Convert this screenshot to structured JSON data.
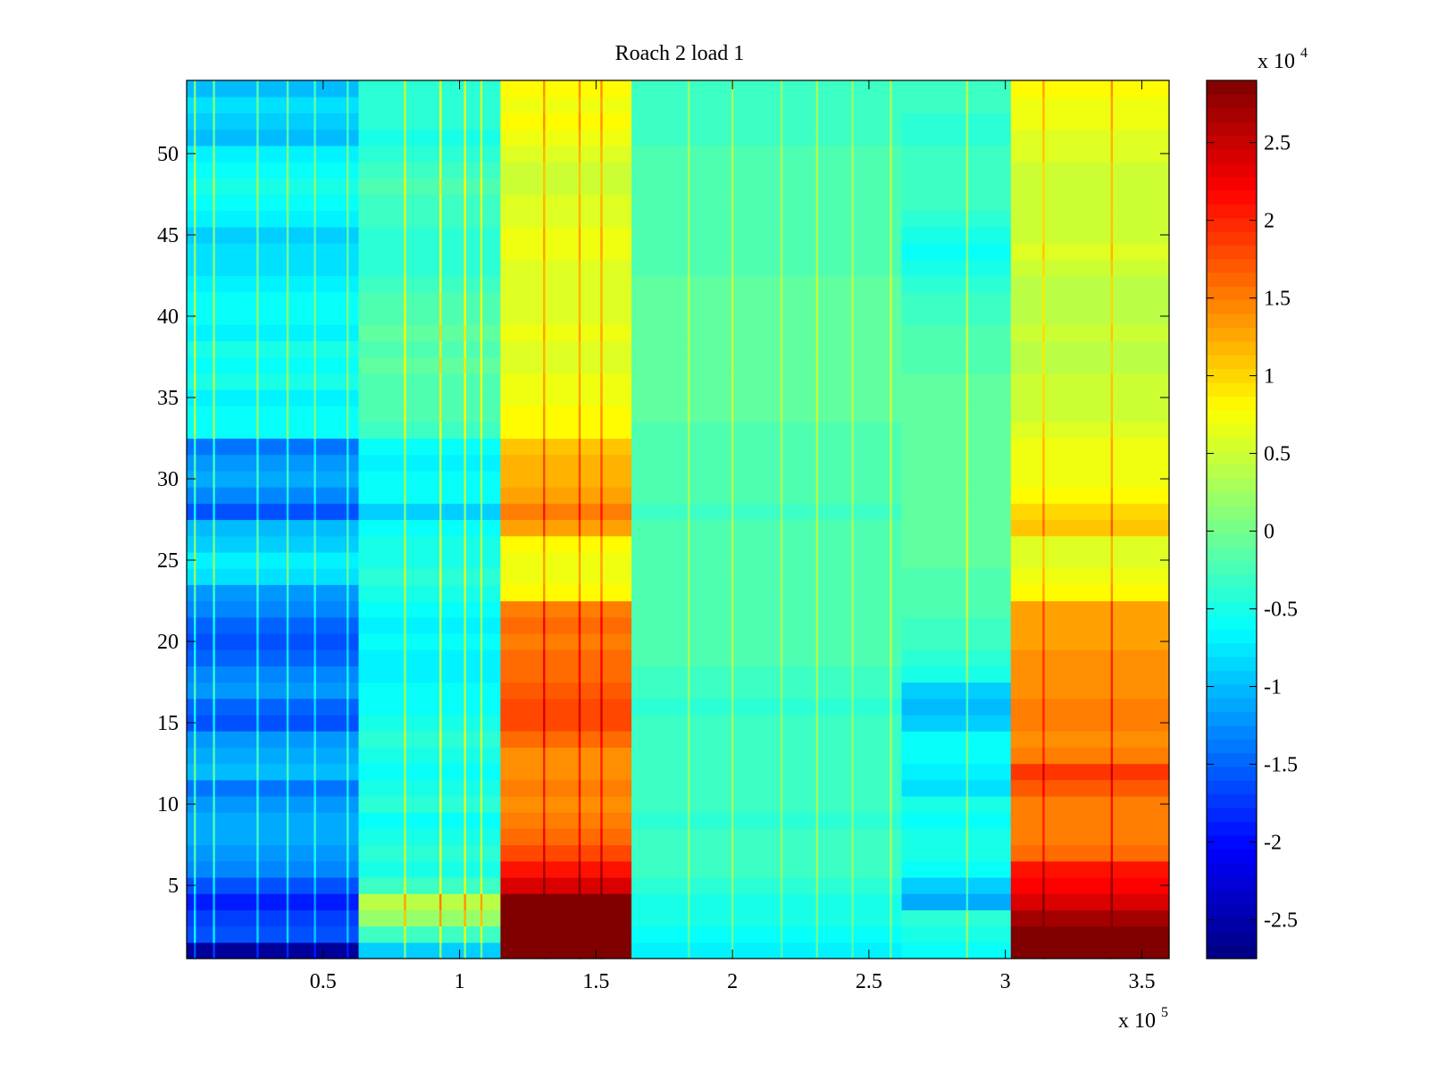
{
  "chart_data": {
    "type": "heatmap",
    "title": "Roach 2 load 1",
    "xlabel": "",
    "ylabel": "",
    "x_multiplier_label": {
      "base": "x 10",
      "exponent": "5"
    },
    "colorbar_multiplier_label": {
      "base": "x 10",
      "exponent": "4"
    },
    "xlim": [
      0,
      3.6
    ],
    "ylim": [
      0.5,
      54.5
    ],
    "clim": [
      -2.75,
      2.9
    ],
    "x_ticks": [
      0.5,
      1,
      1.5,
      2,
      2.5,
      3,
      3.5
    ],
    "x_tick_labels": [
      "0.5",
      "1",
      "1.5",
      "2",
      "2.5",
      "3",
      "3.5"
    ],
    "y_ticks": [
      5,
      10,
      15,
      20,
      25,
      30,
      35,
      40,
      45,
      50
    ],
    "y_tick_labels": [
      "5",
      "10",
      "15",
      "20",
      "25",
      "30",
      "35",
      "40",
      "45",
      "50"
    ],
    "colorbar_ticks": [
      -2.5,
      -2,
      -1.5,
      -1,
      -0.5,
      0,
      0.5,
      1,
      1.5,
      2,
      2.5
    ],
    "colorbar_tick_labels": [
      "-2.5",
      "-2",
      "-1.5",
      "-1",
      "-0.5",
      "0",
      "0.5",
      "1",
      "1.5",
      "2",
      "2.5"
    ],
    "colormap": "jet",
    "grid": false,
    "row_bins": 54,
    "segments": [
      {
        "x_start": 0.0,
        "x_end": 0.63,
        "row_values": [
          -2.6,
          -1.6,
          -1.7,
          -1.9,
          -1.6,
          -1.3,
          -1.2,
          -1.1,
          -1.1,
          -1.2,
          -1.4,
          -1.0,
          -1.1,
          -1.2,
          -1.6,
          -1.5,
          -1.2,
          -1.3,
          -1.5,
          -1.6,
          -1.5,
          -1.3,
          -1.2,
          -0.8,
          -0.7,
          -0.9,
          -1.0,
          -1.6,
          -1.3,
          -1.1,
          -1.2,
          -1.4,
          -0.6,
          -0.6,
          -0.7,
          -0.5,
          -0.6,
          -0.5,
          -0.7,
          -0.6,
          -0.6,
          -0.7,
          -0.8,
          -0.8,
          -0.9,
          -0.7,
          -0.6,
          -0.5,
          -0.6,
          -0.7,
          -1.0,
          -0.9,
          -0.8,
          -1.0
        ]
      },
      {
        "x_start": 0.63,
        "x_end": 1.15,
        "row_values": [
          -0.9,
          -0.3,
          0.2,
          0.4,
          -0.3,
          -0.5,
          -0.4,
          -0.5,
          -0.6,
          -0.4,
          -0.5,
          -0.6,
          -0.5,
          -0.4,
          -0.5,
          -0.6,
          -0.6,
          -0.7,
          -0.7,
          -0.6,
          -0.7,
          -0.6,
          -0.5,
          -0.4,
          -0.5,
          -0.5,
          -0.6,
          -0.9,
          -0.6,
          -0.6,
          -0.7,
          -0.6,
          -0.3,
          -0.2,
          -0.2,
          -0.2,
          -0.1,
          -0.2,
          -0.1,
          -0.2,
          -0.2,
          -0.3,
          -0.4,
          -0.4,
          -0.4,
          -0.3,
          -0.3,
          -0.2,
          -0.3,
          -0.4,
          -0.5,
          -0.4,
          -0.4,
          -0.4
        ]
      },
      {
        "x_start": 1.15,
        "x_end": 1.63,
        "row_values": [
          2.9,
          2.9,
          2.9,
          2.9,
          2.4,
          2.1,
          1.8,
          1.6,
          1.5,
          1.4,
          1.5,
          1.4,
          1.4,
          1.6,
          1.8,
          1.8,
          1.7,
          1.6,
          1.6,
          1.5,
          1.6,
          1.5,
          0.8,
          0.7,
          0.7,
          0.8,
          1.3,
          1.5,
          1.3,
          1.2,
          1.2,
          1.1,
          0.8,
          0.8,
          0.7,
          0.7,
          0.6,
          0.6,
          0.7,
          0.6,
          0.6,
          0.6,
          0.6,
          0.7,
          0.7,
          0.6,
          0.6,
          0.5,
          0.5,
          0.6,
          0.7,
          0.8,
          0.7,
          0.8
        ]
      },
      {
        "x_start": 1.63,
        "x_end": 2.62,
        "row_values": [
          -0.7,
          -0.6,
          -0.5,
          -0.5,
          -0.4,
          -0.3,
          -0.3,
          -0.3,
          -0.4,
          -0.3,
          -0.3,
          -0.3,
          -0.3,
          -0.3,
          -0.3,
          -0.4,
          -0.3,
          -0.3,
          -0.2,
          -0.2,
          -0.2,
          -0.2,
          -0.2,
          -0.2,
          -0.2,
          -0.2,
          -0.2,
          -0.3,
          -0.2,
          -0.2,
          -0.2,
          -0.2,
          -0.2,
          -0.1,
          -0.1,
          -0.1,
          -0.1,
          -0.1,
          -0.1,
          -0.1,
          -0.1,
          -0.1,
          -0.2,
          -0.2,
          -0.2,
          -0.2,
          -0.2,
          -0.2,
          -0.2,
          -0.2,
          -0.3,
          -0.3,
          -0.3,
          -0.3
        ]
      },
      {
        "x_start": 2.62,
        "x_end": 3.02,
        "row_values": [
          -0.6,
          -0.5,
          -0.4,
          -1.1,
          -0.9,
          -0.6,
          -0.5,
          -0.5,
          -0.6,
          -0.5,
          -0.8,
          -0.7,
          -0.6,
          -0.6,
          -0.9,
          -1.0,
          -0.9,
          -0.5,
          -0.4,
          -0.3,
          -0.3,
          -0.2,
          -0.2,
          -0.2,
          -0.1,
          -0.1,
          -0.1,
          -0.1,
          -0.1,
          -0.1,
          -0.1,
          -0.1,
          -0.1,
          -0.1,
          -0.1,
          -0.1,
          -0.2,
          -0.2,
          -0.2,
          -0.3,
          -0.3,
          -0.4,
          -0.5,
          -0.6,
          -0.5,
          -0.4,
          -0.3,
          -0.3,
          -0.3,
          -0.3,
          -0.4,
          -0.4,
          -0.3,
          -0.3
        ]
      },
      {
        "x_start": 3.02,
        "x_end": 3.6,
        "row_values": [
          2.9,
          2.9,
          2.7,
          2.4,
          2.2,
          2.1,
          1.6,
          1.5,
          1.5,
          1.5,
          1.7,
          1.9,
          1.5,
          1.4,
          1.5,
          1.5,
          1.4,
          1.4,
          1.4,
          1.3,
          1.3,
          1.3,
          0.8,
          0.7,
          0.6,
          0.6,
          1.1,
          1.0,
          0.8,
          0.7,
          0.7,
          0.7,
          0.6,
          0.5,
          0.5,
          0.5,
          0.4,
          0.4,
          0.5,
          0.4,
          0.4,
          0.4,
          0.5,
          0.6,
          0.5,
          0.5,
          0.5,
          0.5,
          0.5,
          0.6,
          0.6,
          0.7,
          0.7,
          0.8
        ]
      }
    ],
    "spikes": [
      {
        "x": 0.03,
        "delta": 1.0
      },
      {
        "x": 0.1,
        "delta": 0.9
      },
      {
        "x": 0.26,
        "delta": 0.8
      },
      {
        "x": 0.37,
        "delta": 0.8
      },
      {
        "x": 0.47,
        "delta": 0.7
      },
      {
        "x": 0.59,
        "delta": 0.7
      },
      {
        "x": 0.8,
        "delta": 0.9
      },
      {
        "x": 0.93,
        "delta": 1.1
      },
      {
        "x": 1.02,
        "delta": 1.0
      },
      {
        "x": 1.08,
        "delta": 0.9
      },
      {
        "x": 1.31,
        "delta": 0.6
      },
      {
        "x": 1.44,
        "delta": 0.6
      },
      {
        "x": 1.52,
        "delta": 0.6
      },
      {
        "x": 1.84,
        "delta": 0.5
      },
      {
        "x": 2.0,
        "delta": 0.6
      },
      {
        "x": 2.18,
        "delta": 0.5
      },
      {
        "x": 2.31,
        "delta": 0.6
      },
      {
        "x": 2.44,
        "delta": 0.5
      },
      {
        "x": 2.58,
        "delta": 0.6
      },
      {
        "x": 2.86,
        "delta": 0.7
      },
      {
        "x": 3.14,
        "delta": 0.5
      },
      {
        "x": 3.39,
        "delta": 0.6
      }
    ]
  }
}
